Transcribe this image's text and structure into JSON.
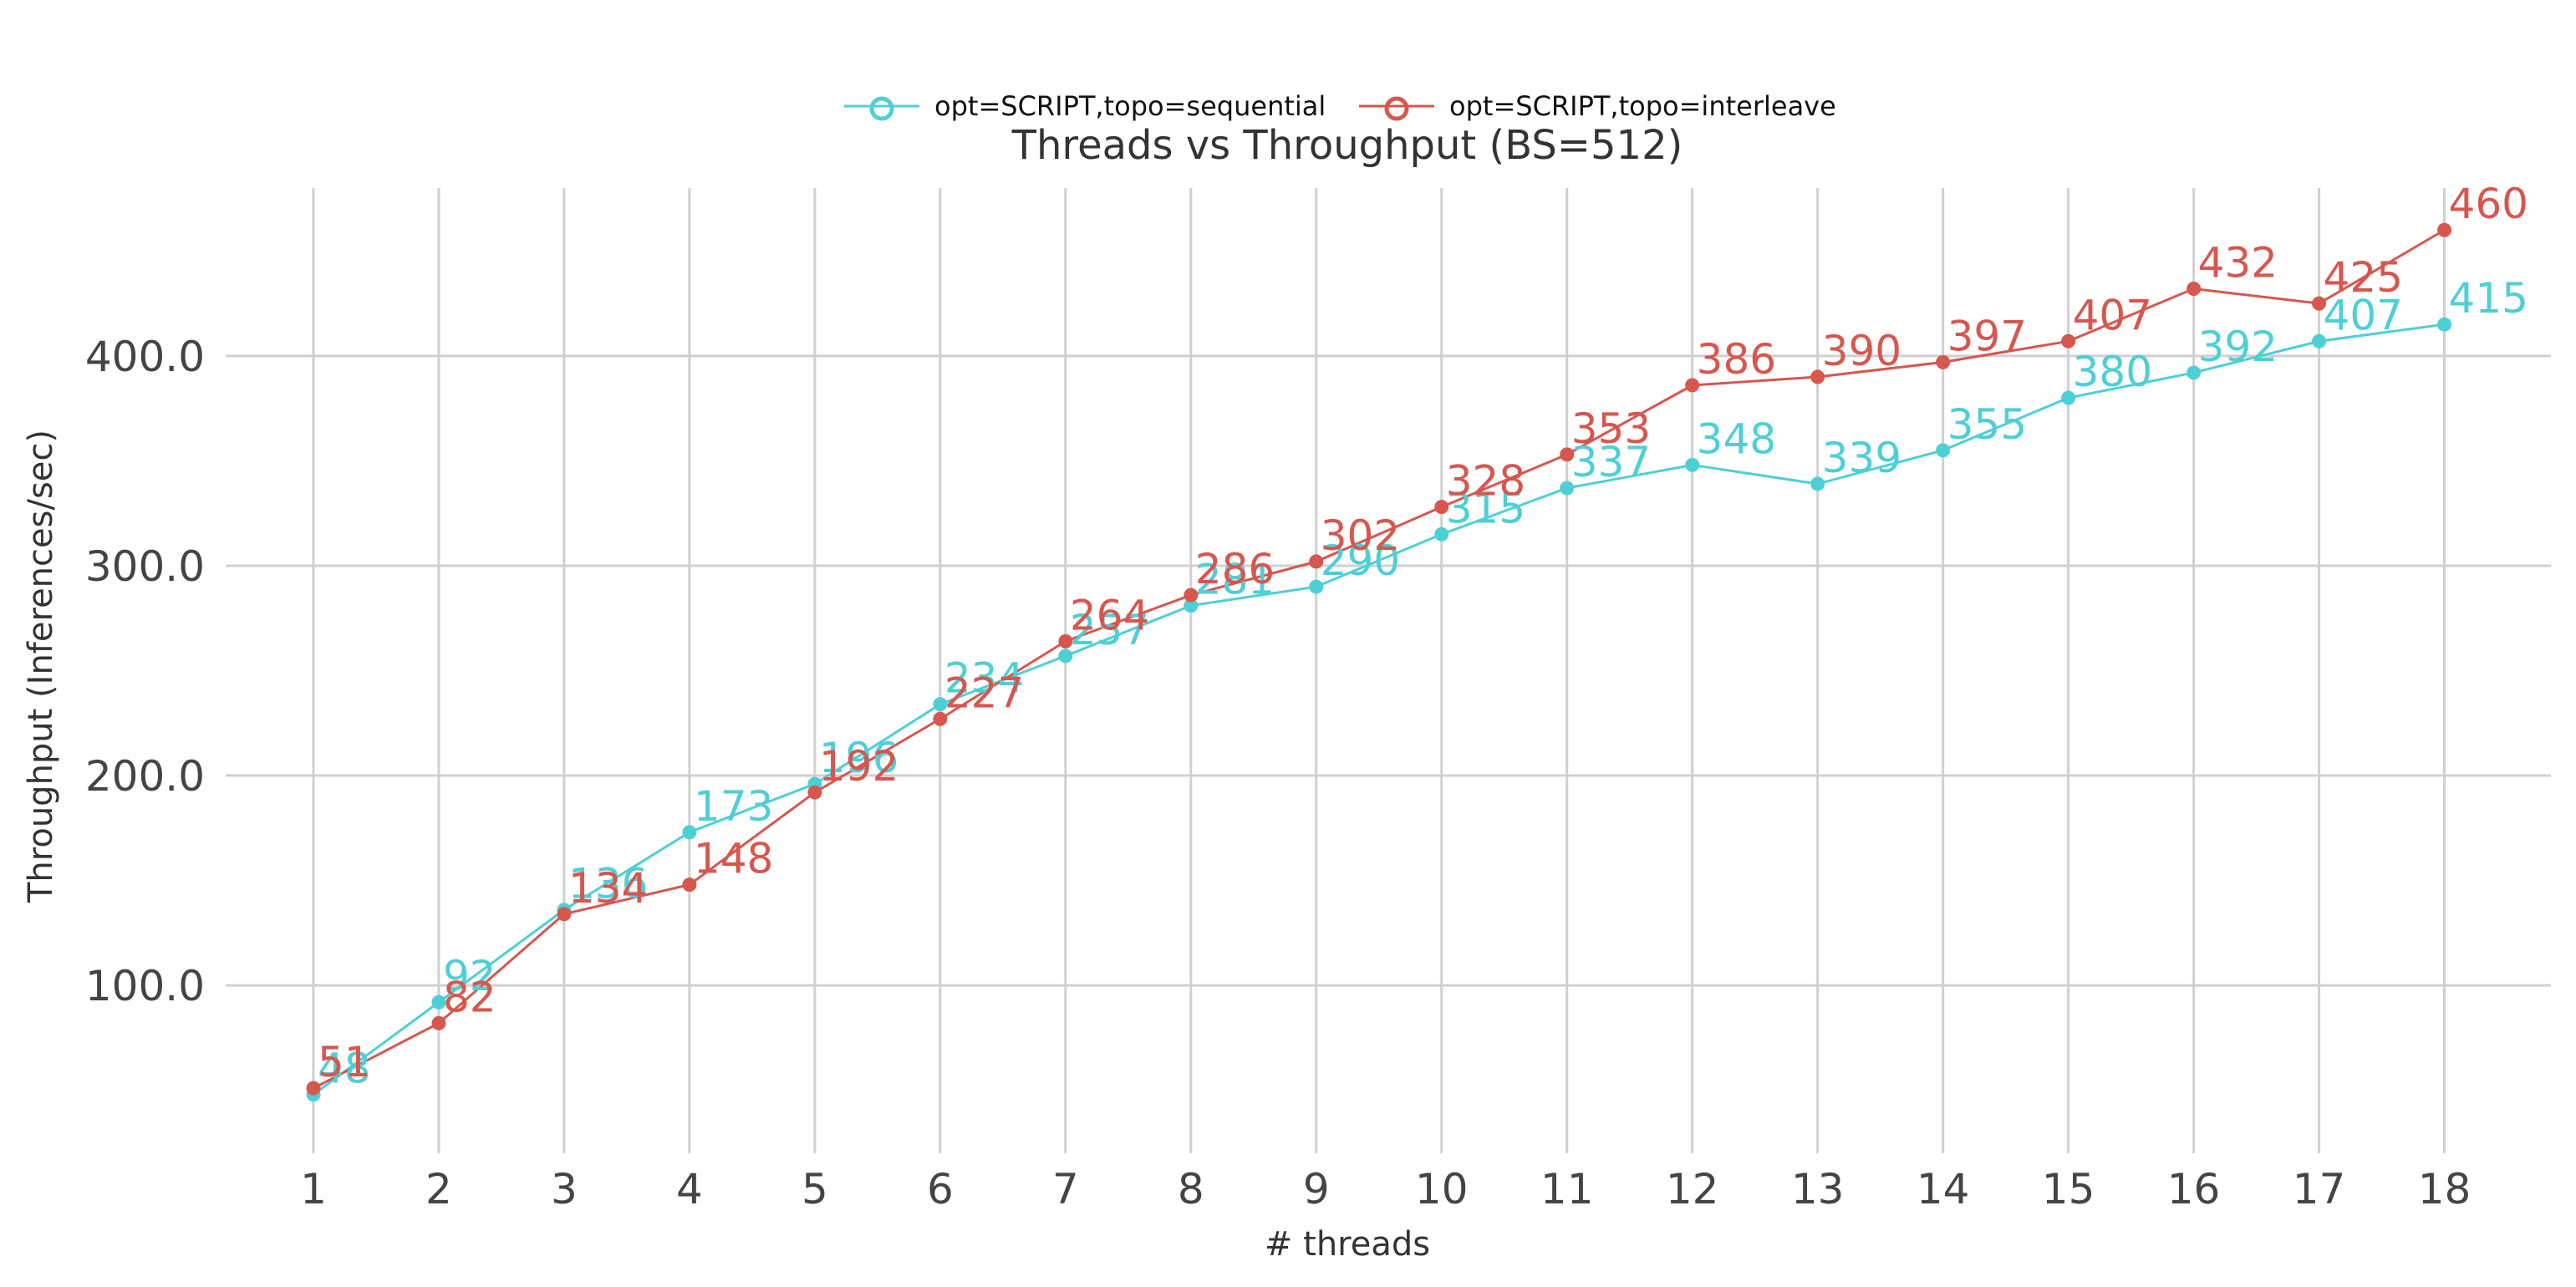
{
  "chart_data": {
    "type": "line",
    "title": "Threads vs Throughput (BS=512)",
    "xlabel": "# threads",
    "ylabel": "Throughput (Inferences/sec)",
    "x": [
      1,
      2,
      3,
      4,
      5,
      6,
      7,
      8,
      9,
      10,
      11,
      12,
      13,
      14,
      15,
      16,
      17,
      18
    ],
    "x_tick_labels": [
      "1",
      "2",
      "3",
      "4",
      "5",
      "6",
      "7",
      "8",
      "9",
      "10",
      "11",
      "12",
      "13",
      "14",
      "15",
      "16",
      "17",
      "18"
    ],
    "y_ticks": [
      100,
      200,
      300,
      400
    ],
    "y_tick_labels": [
      "100.0",
      "200.0",
      "300.0",
      "400.0"
    ],
    "ylim": [
      20,
      480
    ],
    "xlim": [
      0.3,
      18.85
    ],
    "grid": true,
    "legend_position": "top-center",
    "series": [
      {
        "name": "opt=SCRIPT,topo=sequential",
        "color": "#4ecfd6",
        "values": [
          48,
          92,
          136,
          173,
          196,
          234,
          257,
          281,
          290,
          315,
          337,
          348,
          339,
          355,
          380,
          392,
          407,
          415
        ],
        "labels": [
          "48",
          "92",
          "136",
          "173",
          "196",
          "234",
          "257",
          "281",
          "290",
          "315",
          "337",
          "348",
          "339",
          "355",
          "380",
          "392",
          "407",
          "415"
        ]
      },
      {
        "name": "opt=SCRIPT,topo=interleave",
        "color": "#d6574e",
        "values": [
          51,
          82,
          134,
          148,
          192,
          227,
          264,
          286,
          302,
          328,
          353,
          386,
          390,
          397,
          407,
          432,
          425,
          460
        ],
        "labels": [
          "51",
          "82",
          "134",
          "148",
          "192",
          "227",
          "264",
          "286",
          "302",
          "328",
          "353",
          "386",
          "390",
          "397",
          "407",
          "432",
          "425",
          "460"
        ]
      }
    ]
  }
}
